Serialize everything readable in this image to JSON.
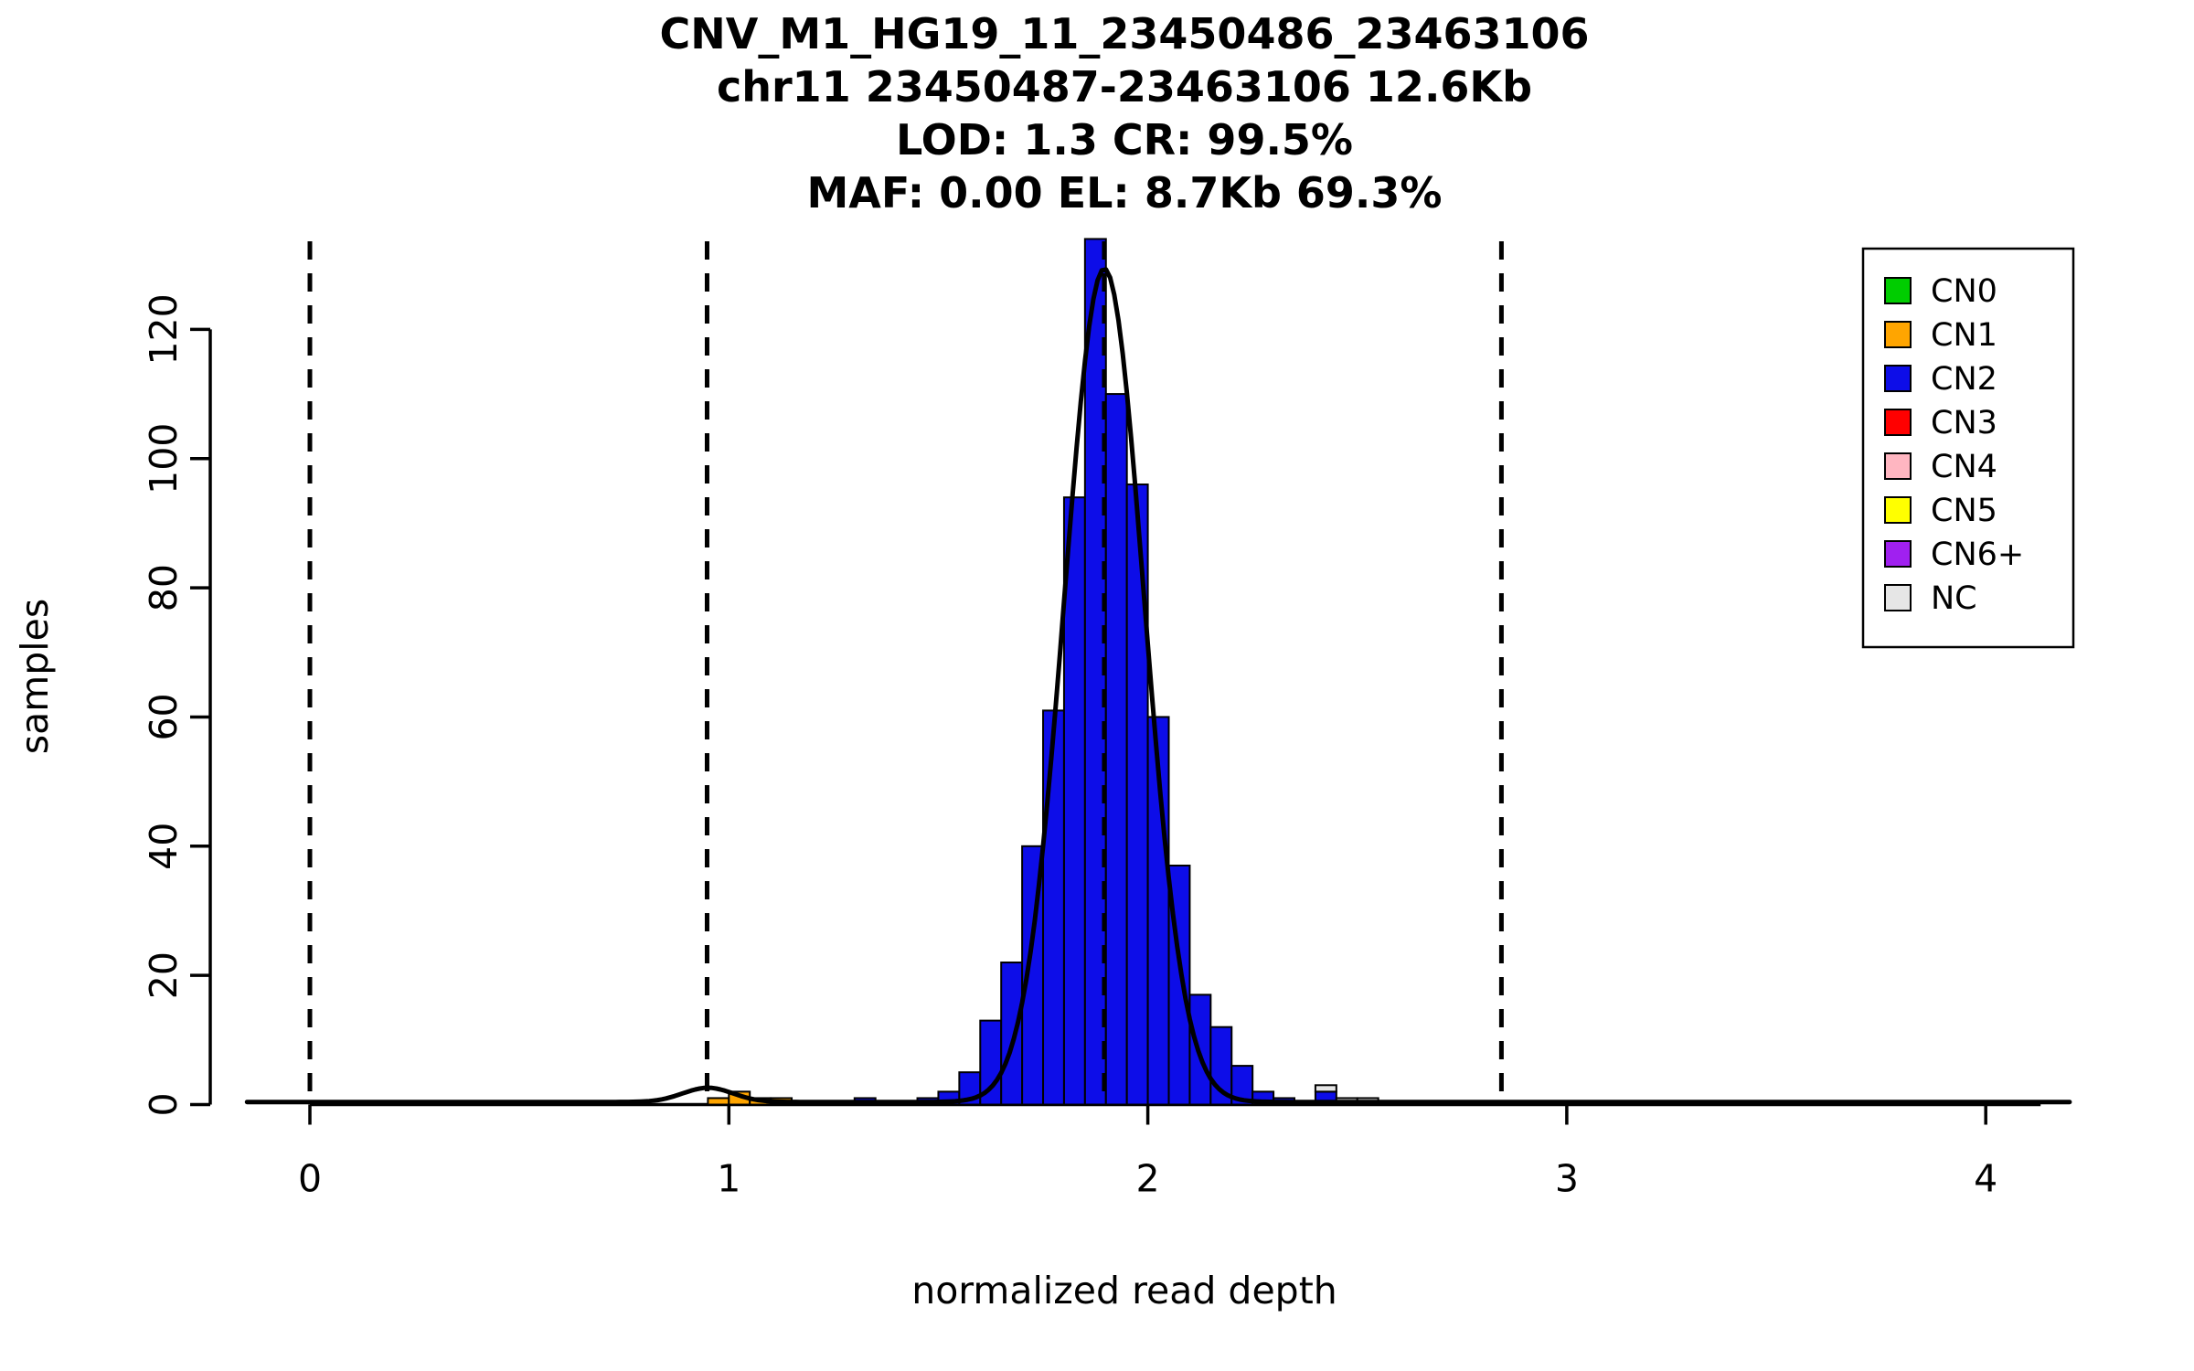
{
  "figure": {
    "titles": [
      "CNV_M1_HG19_11_23450486_23463106",
      "chr11 23450487-23463106 12.6Kb",
      "LOD: 1.3 CR: 99.5%",
      "MAF: 0.00 EL: 8.7Kb 69.3%"
    ]
  },
  "chart_data": {
    "type": "bar",
    "subtype": "histogram-with-density",
    "title": "CNV_M1_HG19_11_23450486_23463106",
    "subtitle_lines": [
      "chr11 23450487-23463106 12.6Kb",
      "LOD: 1.3 CR: 99.5%",
      "MAF: 0.00 EL: 8.7Kb 69.3%"
    ],
    "xlabel": "normalized read depth",
    "ylabel": "samples",
    "xlim": [
      -0.2,
      4.25
    ],
    "ylim": [
      0,
      134
    ],
    "x_ticks": [
      0,
      1,
      2,
      3,
      4
    ],
    "y_ticks": [
      0,
      20,
      40,
      60,
      80,
      100,
      120
    ],
    "bin_width": 0.05,
    "grid": false,
    "legend_position": "top-right",
    "bars": [
      {
        "x0": 0.95,
        "segs": [
          [
            "CN1",
            1
          ]
        ]
      },
      {
        "x0": 1.0,
        "segs": [
          [
            "CN1",
            2
          ]
        ]
      },
      {
        "x0": 1.05,
        "segs": [
          [
            "CN1",
            1
          ]
        ]
      },
      {
        "x0": 1.1,
        "segs": [
          [
            "CN1",
            1
          ]
        ]
      },
      {
        "x0": 1.3,
        "segs": [
          [
            "CN2",
            1
          ]
        ]
      },
      {
        "x0": 1.45,
        "segs": [
          [
            "CN2",
            1
          ]
        ]
      },
      {
        "x0": 1.5,
        "segs": [
          [
            "CN2",
            2
          ]
        ]
      },
      {
        "x0": 1.55,
        "segs": [
          [
            "CN2",
            5
          ]
        ]
      },
      {
        "x0": 1.6,
        "segs": [
          [
            "CN2",
            13
          ]
        ]
      },
      {
        "x0": 1.65,
        "segs": [
          [
            "CN2",
            22
          ]
        ]
      },
      {
        "x0": 1.7,
        "segs": [
          [
            "CN2",
            40
          ]
        ]
      },
      {
        "x0": 1.75,
        "segs": [
          [
            "CN2",
            61
          ]
        ]
      },
      {
        "x0": 1.8,
        "segs": [
          [
            "CN2",
            94
          ]
        ]
      },
      {
        "x0": 1.85,
        "segs": [
          [
            "CN2",
            134
          ]
        ]
      },
      {
        "x0": 1.9,
        "segs": [
          [
            "CN2",
            110
          ]
        ]
      },
      {
        "x0": 1.95,
        "segs": [
          [
            "CN2",
            96
          ]
        ]
      },
      {
        "x0": 2.0,
        "segs": [
          [
            "CN2",
            60
          ]
        ]
      },
      {
        "x0": 2.05,
        "segs": [
          [
            "CN2",
            37
          ]
        ]
      },
      {
        "x0": 2.1,
        "segs": [
          [
            "CN2",
            17
          ]
        ]
      },
      {
        "x0": 2.15,
        "segs": [
          [
            "CN2",
            12
          ]
        ]
      },
      {
        "x0": 2.2,
        "segs": [
          [
            "CN2",
            6
          ]
        ]
      },
      {
        "x0": 2.25,
        "segs": [
          [
            "CN2",
            2
          ]
        ]
      },
      {
        "x0": 2.3,
        "segs": [
          [
            "CN2",
            1
          ]
        ]
      },
      {
        "x0": 2.4,
        "segs": [
          [
            "CN2",
            2
          ],
          [
            "NC",
            1
          ]
        ]
      },
      {
        "x0": 2.45,
        "segs": [
          [
            "NC",
            1
          ]
        ]
      },
      {
        "x0": 2.5,
        "segs": [
          [
            "NC",
            1
          ]
        ]
      }
    ],
    "dashed_lines_x": [
      0,
      0.948,
      1.896,
      2.844
    ],
    "density_curve": {
      "baseline": 0.4,
      "range": [
        -0.15,
        4.2
      ],
      "components": [
        {
          "mean": 1.896,
          "sd": 0.095,
          "peak": 129
        },
        {
          "mean": 0.95,
          "sd": 0.06,
          "peak": 2.2
        }
      ]
    },
    "legend": [
      {
        "label": "CN0",
        "color": "#00CD00"
      },
      {
        "label": "CN1",
        "color": "#FFA500"
      },
      {
        "label": "CN2",
        "color": "#0D0DE8"
      },
      {
        "label": "CN3",
        "color": "#FF0000"
      },
      {
        "label": "CN4",
        "color": "#FFB6C1"
      },
      {
        "label": "CN5",
        "color": "#FFFF00"
      },
      {
        "label": "CN6+",
        "color": "#A020F0"
      },
      {
        "label": "NC",
        "color": "#E6E6E6"
      }
    ],
    "colors": {
      "CN0": "#00CD00",
      "CN1": "#FFA500",
      "CN2": "#0D0DE8",
      "CN3": "#FF0000",
      "CN4": "#FFB6C1",
      "CN5": "#FFFF00",
      "CN6+": "#A020F0",
      "NC": "#E6E6E6",
      "axis": "#000000",
      "curve": "#000000",
      "background": "#ffffff"
    }
  }
}
